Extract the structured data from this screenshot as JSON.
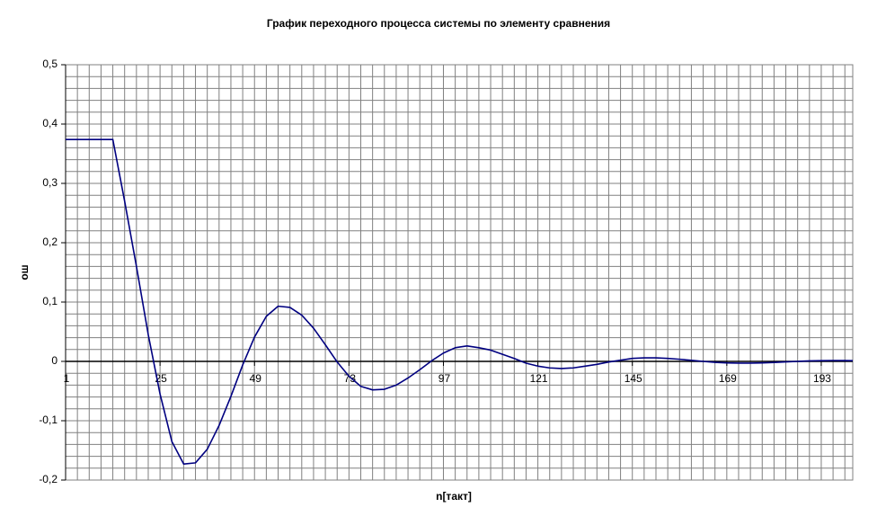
{
  "chart_data": {
    "type": "line",
    "title": "График переходного процесса системы по элементу сравнения",
    "x_label": "n[такт]",
    "y_label": "ош",
    "x": [
      1,
      4,
      7,
      10,
      13,
      16,
      19,
      22,
      25,
      28,
      31,
      34,
      37,
      40,
      43,
      46,
      49,
      52,
      55,
      58,
      61,
      64,
      67,
      70,
      73,
      76,
      79,
      82,
      85,
      88,
      91,
      94,
      97,
      100,
      103,
      106,
      109,
      112,
      115,
      118,
      121,
      124,
      127,
      130,
      133,
      136,
      139,
      142,
      145,
      148,
      151,
      154,
      157,
      160,
      163,
      166,
      169,
      172,
      175,
      178,
      181,
      184,
      187,
      190,
      193,
      196,
      199,
      201
    ],
    "series": [
      {
        "name": "ош",
        "color": "#000080",
        "values": [
          0.374,
          0.374,
          0.374,
          0.374,
          0.374,
          0.27,
          0.16,
          0.045,
          -0.055,
          -0.135,
          -0.173,
          -0.171,
          -0.148,
          -0.108,
          -0.059,
          -0.006,
          0.041,
          0.076,
          0.093,
          0.091,
          0.078,
          0.056,
          0.028,
          -0.001,
          -0.025,
          -0.042,
          -0.048,
          -0.047,
          -0.04,
          -0.028,
          -0.014,
          0.001,
          0.014,
          0.023,
          0.026,
          0.023,
          0.019,
          0.012,
          0.005,
          -0.003,
          -0.008,
          -0.011,
          -0.012,
          -0.011,
          -0.008,
          -0.005,
          -0.001,
          0.002,
          0.005,
          0.006,
          0.006,
          0.005,
          0.0036,
          0.0018,
          0,
          -0.0016,
          -0.0026,
          -0.003,
          -0.0029,
          -0.0025,
          -0.0018,
          -0.0009,
          0,
          0.0008,
          0.0013,
          0.0015,
          0.0014,
          0.0013
        ]
      }
    ],
    "xlim": [
      1,
      201
    ],
    "xticks": [
      1,
      25,
      49,
      73,
      97,
      121,
      145,
      169,
      193
    ],
    "ylim": [
      -0.2,
      0.5
    ],
    "yticks": [
      {
        "value": -0.2,
        "label": "-0,2"
      },
      {
        "value": -0.1,
        "label": "-0,1"
      },
      0,
      {
        "value": 0.1,
        "label": "0,1"
      },
      {
        "value": 0.2,
        "label": "0,2"
      },
      {
        "value": 0.3,
        "label": "0,3"
      },
      {
        "value": 0.4,
        "label": "0,4"
      },
      {
        "value": 0.5,
        "label": "0,5"
      }
    ],
    "grid": true,
    "xgrid_interval": 3,
    "ygrid_interval": 0.02
  }
}
